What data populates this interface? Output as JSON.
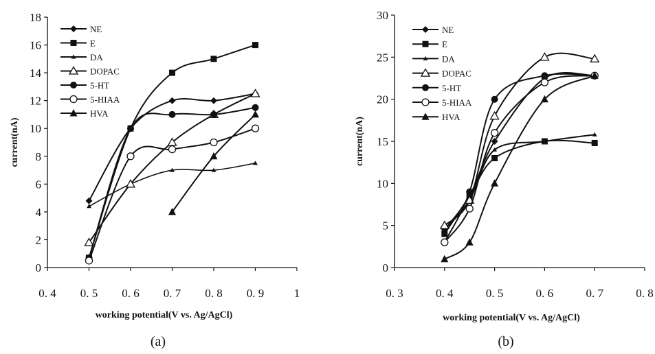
{
  "chart_data": [
    {
      "type": "line",
      "panel_label": "(a)",
      "xlabel": "working potential(V vs. Ag/AgCl)",
      "ylabel": "current(nA)",
      "xlim": [
        0.4,
        1.0
      ],
      "ylim": [
        0,
        18
      ],
      "xticks": [
        0.4,
        0.5,
        0.6,
        0.7,
        0.8,
        0.9,
        1.0
      ],
      "xtick_labels": [
        "0. 4",
        "0. 5",
        "0. 6",
        "0. 7",
        "0. 8",
        "0. 9",
        "1"
      ],
      "yticks": [
        0,
        2,
        4,
        6,
        8,
        10,
        12,
        14,
        16,
        18
      ],
      "ytick_labels": [
        "0",
        "2",
        "4",
        "6",
        "8",
        "10",
        "12",
        "14",
        "16",
        "18"
      ],
      "grid": false,
      "legend_position": "top-left",
      "series": [
        {
          "name": "NE",
          "marker": "diamond",
          "x": [
            0.5,
            0.6,
            0.7,
            0.8,
            0.9
          ],
          "y": [
            4.8,
            10.0,
            12.0,
            12.0,
            12.5
          ]
        },
        {
          "name": "E",
          "marker": "square",
          "x": [
            0.5,
            0.6,
            0.7,
            0.8,
            0.9
          ],
          "y": [
            0.7,
            10.0,
            14.0,
            15.0,
            16.0
          ]
        },
        {
          "name": "DA",
          "marker": "small-triangle",
          "x": [
            0.5,
            0.6,
            0.7,
            0.8,
            0.9
          ],
          "y": [
            4.4,
            6.0,
            7.0,
            7.0,
            7.5
          ]
        },
        {
          "name": "DOPAC",
          "marker": "open-triangle",
          "x": [
            0.5,
            0.6,
            0.7,
            0.8,
            0.9
          ],
          "y": [
            1.8,
            6.0,
            9.0,
            11.0,
            12.5
          ]
        },
        {
          "name": "5-HT",
          "marker": "filled-circle",
          "x": [
            0.5,
            0.6,
            0.7,
            0.8,
            0.9
          ],
          "y": [
            0.7,
            10.0,
            11.0,
            11.0,
            11.5
          ]
        },
        {
          "name": "5-HIAA",
          "marker": "open-circle",
          "x": [
            0.5,
            0.6,
            0.7,
            0.8,
            0.9
          ],
          "y": [
            0.5,
            8.0,
            8.5,
            9.0,
            10.0
          ]
        },
        {
          "name": "HVA",
          "marker": "filled-triangle",
          "x": [
            0.7,
            0.8,
            0.9
          ],
          "y": [
            4.0,
            8.0,
            11.0
          ]
        }
      ]
    },
    {
      "type": "line",
      "panel_label": "(b)",
      "xlabel": "working potential(V vs. Ag/AgCl)",
      "ylabel": "current(nA)",
      "xlim": [
        0.3,
        0.8
      ],
      "ylim": [
        0,
        30
      ],
      "xticks": [
        0.3,
        0.4,
        0.5,
        0.6,
        0.7,
        0.8
      ],
      "xtick_labels": [
        "0. 3",
        "0. 4",
        "0. 5",
        "0. 6",
        "0. 7",
        "0. 8"
      ],
      "yticks": [
        0,
        5,
        10,
        15,
        20,
        25,
        30
      ],
      "ytick_labels": [
        "0",
        "5",
        "10",
        "15",
        "20",
        "25",
        "30"
      ],
      "grid": false,
      "legend_position": "top-left",
      "series": [
        {
          "name": "NE",
          "marker": "diamond",
          "x": [
            0.4,
            0.45,
            0.5,
            0.6,
            0.7
          ],
          "y": [
            4.5,
            8.5,
            15.0,
            22.5,
            22.8
          ]
        },
        {
          "name": "E",
          "marker": "square",
          "x": [
            0.4,
            0.45,
            0.5,
            0.6,
            0.7
          ],
          "y": [
            4.0,
            8.5,
            13.0,
            15.0,
            14.8
          ]
        },
        {
          "name": "DA",
          "marker": "small-triangle",
          "x": [
            0.4,
            0.45,
            0.5,
            0.6,
            0.7
          ],
          "y": [
            4.5,
            8.0,
            14.0,
            15.0,
            15.8
          ]
        },
        {
          "name": "DOPAC",
          "marker": "open-triangle",
          "x": [
            0.4,
            0.45,
            0.5,
            0.6,
            0.7
          ],
          "y": [
            5.0,
            8.0,
            18.0,
            25.0,
            24.8
          ]
        },
        {
          "name": "5-HT",
          "marker": "filled-circle",
          "x": [
            0.4,
            0.45,
            0.5,
            0.6,
            0.7
          ],
          "y": [
            3.0,
            9.0,
            20.0,
            22.8,
            22.8
          ]
        },
        {
          "name": "5-HIAA",
          "marker": "open-circle",
          "x": [
            0.4,
            0.45,
            0.5,
            0.6,
            0.7
          ],
          "y": [
            3.0,
            7.0,
            16.0,
            22.0,
            22.8
          ]
        },
        {
          "name": "HVA",
          "marker": "filled-triangle",
          "x": [
            0.4,
            0.45,
            0.5,
            0.6,
            0.7
          ],
          "y": [
            1.0,
            3.0,
            10.0,
            20.0,
            22.8
          ]
        }
      ]
    }
  ]
}
